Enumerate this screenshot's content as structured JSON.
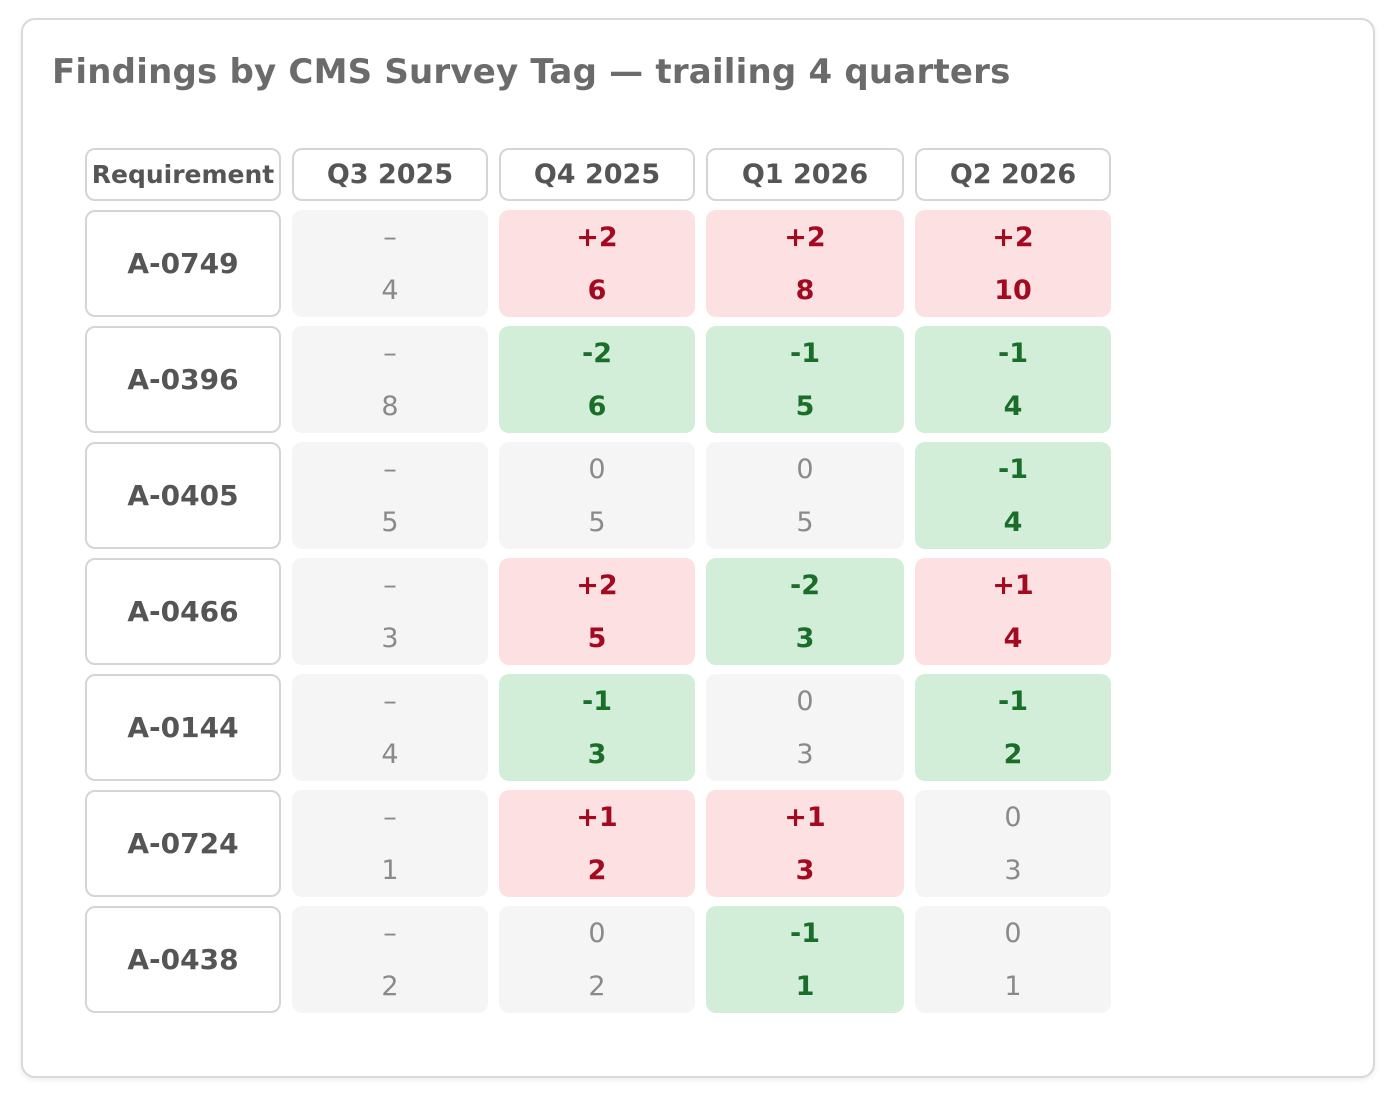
{
  "chart_data": {
    "type": "table",
    "title": "Findings by CMS Survey Tag — trailing 4 quarters",
    "row_header": "Requirement",
    "columns": [
      "Q3 2025",
      "Q4 2025",
      "Q1 2026",
      "Q2 2026"
    ],
    "rows": [
      {
        "label": "A-0749",
        "values": [
          4,
          6,
          8,
          10
        ],
        "deltas": [
          "–",
          "+2",
          "+2",
          "+2"
        ]
      },
      {
        "label": "A-0396",
        "values": [
          8,
          6,
          5,
          4
        ],
        "deltas": [
          "–",
          "-2",
          "-1",
          "-1"
        ]
      },
      {
        "label": "A-0405",
        "values": [
          5,
          5,
          5,
          4
        ],
        "deltas": [
          "–",
          "0",
          "0",
          "-1"
        ]
      },
      {
        "label": "A-0466",
        "values": [
          3,
          5,
          3,
          4
        ],
        "deltas": [
          "–",
          "+2",
          "-2",
          "+1"
        ]
      },
      {
        "label": "A-0144",
        "values": [
          4,
          3,
          3,
          2
        ],
        "deltas": [
          "–",
          "-1",
          "0",
          "-1"
        ]
      },
      {
        "label": "A-0724",
        "values": [
          1,
          2,
          3,
          3
        ],
        "deltas": [
          "–",
          "+1",
          "+1",
          "0"
        ]
      },
      {
        "label": "A-0438",
        "values": [
          2,
          2,
          1,
          1
        ],
        "deltas": [
          "–",
          "0",
          "-1",
          "0"
        ]
      }
    ],
    "colors": {
      "increase_bg": "#fde1e2",
      "increase_text": "#a3091f",
      "decrease_bg": "#d3eed8",
      "decrease_text": "#1a6e2a",
      "neutral_bg": "#f5f5f5",
      "neutral_text": "#8a8a8a"
    }
  }
}
